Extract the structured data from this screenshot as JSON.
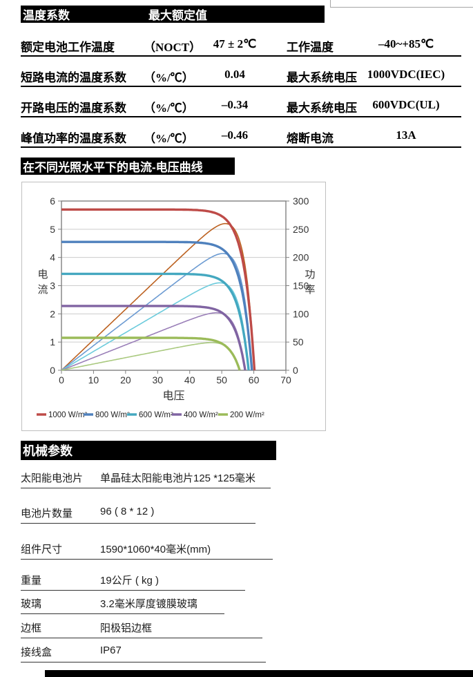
{
  "spec_table": {
    "header_col1": "温度系数",
    "header_col2": "最大额定值",
    "rows": [
      {
        "label": "额定电池工作温度",
        "unit": "（NOCT）",
        "value": "47 ± 2℃",
        "label2": "工作温度",
        "value2": "–40~+85℃"
      },
      {
        "label": "短路电流的温度系数",
        "unit": "（%/℃）",
        "value": "0.04",
        "label2": "最大系统电压",
        "value2": "1000VDC(IEC)"
      },
      {
        "label": "开路电压的温度系数",
        "unit": "（%/℃）",
        "value": "–0.34",
        "label2": "最大系统电压",
        "value2": "600VDC(UL)"
      },
      {
        "label": "峰值功率的温度系数",
        "unit": "（%/℃）",
        "value": "–0.46",
        "label2": "熔断电流",
        "value2": "13A"
      }
    ]
  },
  "iv_section": {
    "title": "在不同光照水平下的电流-电压曲线"
  },
  "chart_data": {
    "type": "line",
    "title": "",
    "xlabel": "电压",
    "ylabel_left": "电流",
    "ylabel_right": "功率",
    "x_range": [
      0,
      70
    ],
    "x_tick_step": 10,
    "y_left_range": [
      0,
      6
    ],
    "y_left_tick_step": 1,
    "y_right_range": [
      0,
      300
    ],
    "y_right_tick_step": 50,
    "grid": "horizontal",
    "legend_position": "bottom",
    "axis_color": "#808080",
    "grid_color": "#cccccc",
    "series": [
      {
        "name": "1000 W/m²",
        "iv_color": "#BE4B48",
        "pv_color": "#BC6120",
        "isc_A": 5.7,
        "voc_V": 60.2,
        "pmax_W": 260,
        "vmp_V": 49
      },
      {
        "name": "800 W/m²",
        "iv_color": "#4F81BD",
        "pv_color": "#6C9BD2",
        "isc_A": 4.55,
        "voc_V": 59.4,
        "pmax_W": 207,
        "vmp_V": 48
      },
      {
        "name": "600 W/m²",
        "iv_color": "#44A8C0",
        "pv_color": "#6CCBDC",
        "isc_A": 3.42,
        "voc_V": 58.4,
        "pmax_W": 155,
        "vmp_V": 48
      },
      {
        "name": "400 W/m²",
        "iv_color": "#8064A2",
        "pv_color": "#9A7FB8",
        "isc_A": 2.28,
        "voc_V": 57.3,
        "pmax_W": 102,
        "vmp_V": 47
      },
      {
        "name": "200 W/m²",
        "iv_color": "#9BBB59",
        "pv_color": "#A9C97E",
        "isc_A": 1.15,
        "voc_V": 55.6,
        "pmax_W": 49,
        "vmp_V": 46
      }
    ]
  },
  "mech_section": {
    "title": "机械参数",
    "rows": [
      {
        "label": "太阳能电池片",
        "value": "单晶硅太阳能电池片125 *125毫米"
      },
      {
        "label": "电池片数量",
        "value": "96 ( 8 * 12 )"
      },
      {
        "label": "组件尺寸",
        "value": "1590*1060*40毫米(mm)"
      },
      {
        "label": "重量",
        "value": "19公斤 ( kg )"
      },
      {
        "label": "玻璃",
        "value": "3.2毫米厚度镀膜玻璃"
      },
      {
        "label": "边框",
        "value": "阳极铝边框"
      },
      {
        "label": "接线盒",
        "value": "IP67"
      }
    ]
  }
}
